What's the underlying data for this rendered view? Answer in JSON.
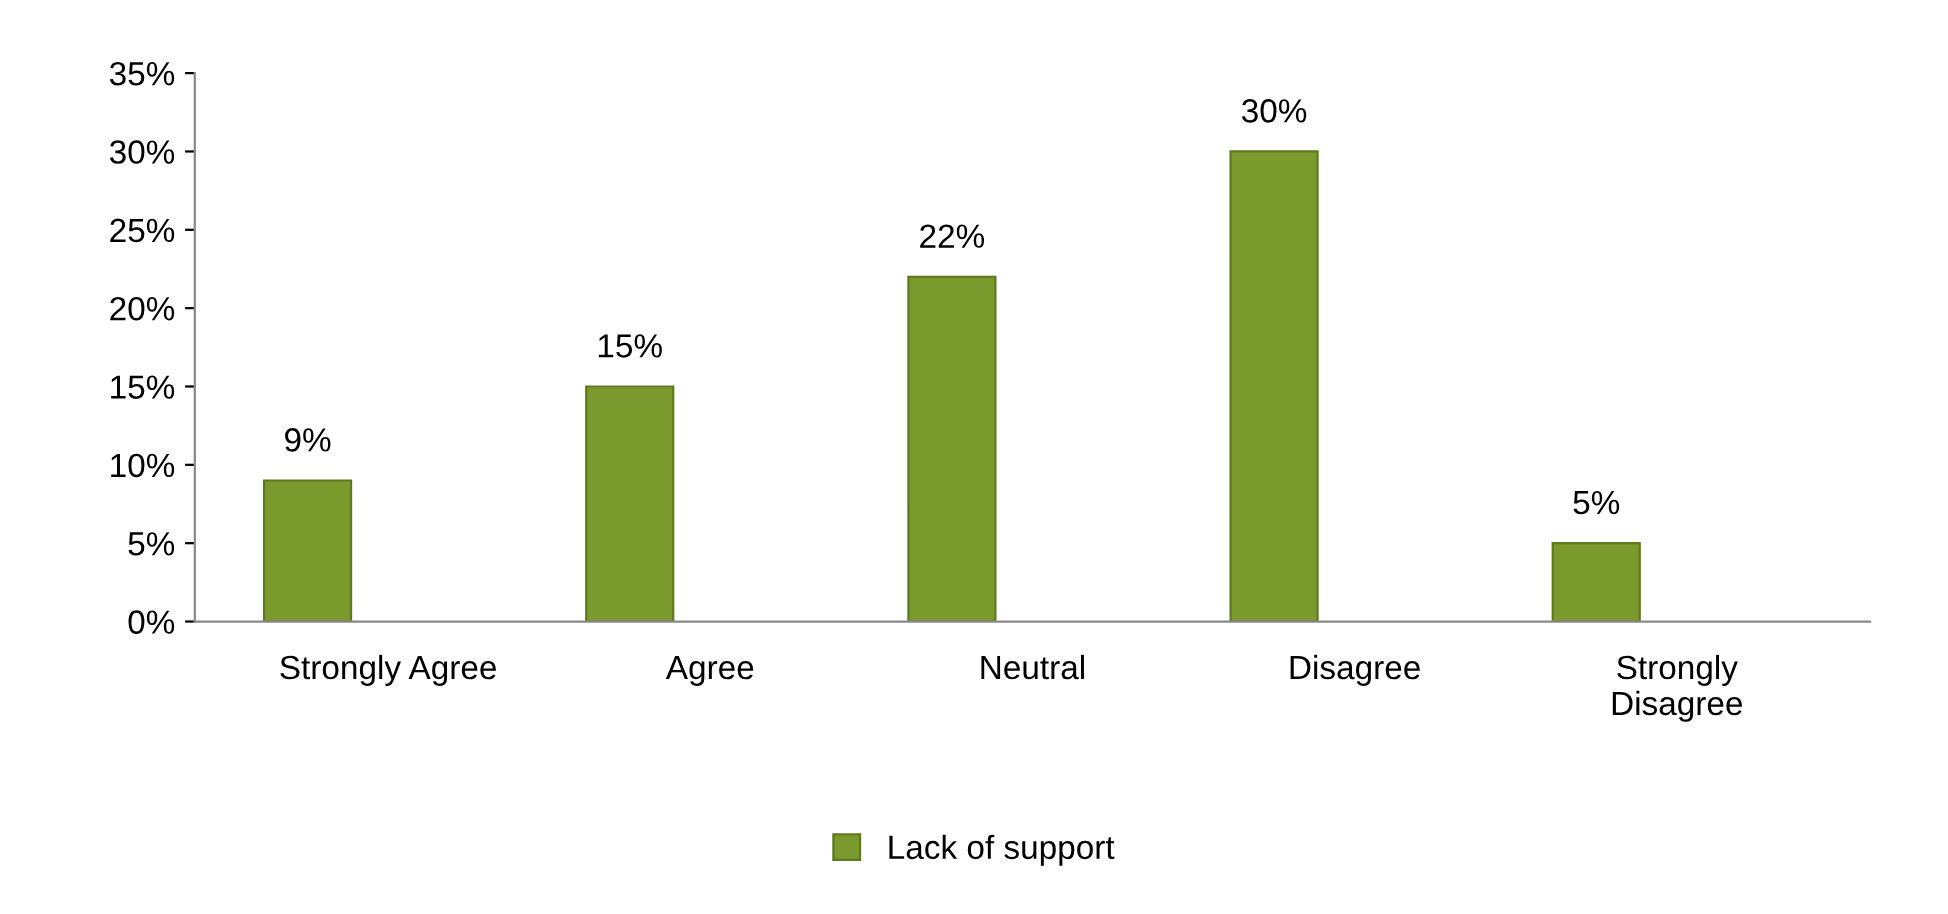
{
  "chart_data": {
    "type": "bar",
    "categories": [
      "Strongly Agree",
      "Agree",
      "Neutral",
      "Disagree",
      "Strongly\nDisagree"
    ],
    "series": [
      {
        "name": "Lack of support",
        "color": "#7a9a2e",
        "values": [
          9,
          15,
          22,
          30,
          5
        ],
        "value_labels": [
          "9%",
          "15%",
          "22%",
          "30%",
          "5%"
        ]
      }
    ],
    "ylim": [
      0,
      35
    ],
    "yticks": [
      {
        "value": 0,
        "label": "0%"
      },
      {
        "value": 5,
        "label": "5%"
      },
      {
        "value": 10,
        "label": "10%"
      },
      {
        "value": 15,
        "label": "15%"
      },
      {
        "value": 20,
        "label": "20%"
      },
      {
        "value": 25,
        "label": "25%"
      },
      {
        "value": 30,
        "label": "30%"
      },
      {
        "value": 35,
        "label": "35%"
      }
    ],
    "grid": false,
    "legend": "bottom"
  }
}
